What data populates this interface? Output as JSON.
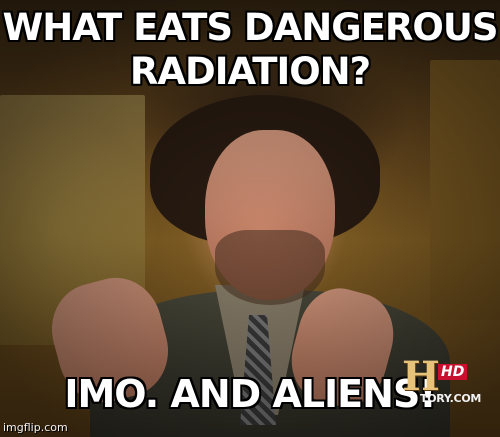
{
  "meme": {
    "top_text": "WHAT EATS DANGEROUS RADIATION?",
    "bottom_text": "IMO. AND ALIENS!"
  },
  "channel_logo": {
    "letter": "H",
    "badge": "HD",
    "text": "TORY.COM"
  },
  "watermark": "imgflip.com"
}
